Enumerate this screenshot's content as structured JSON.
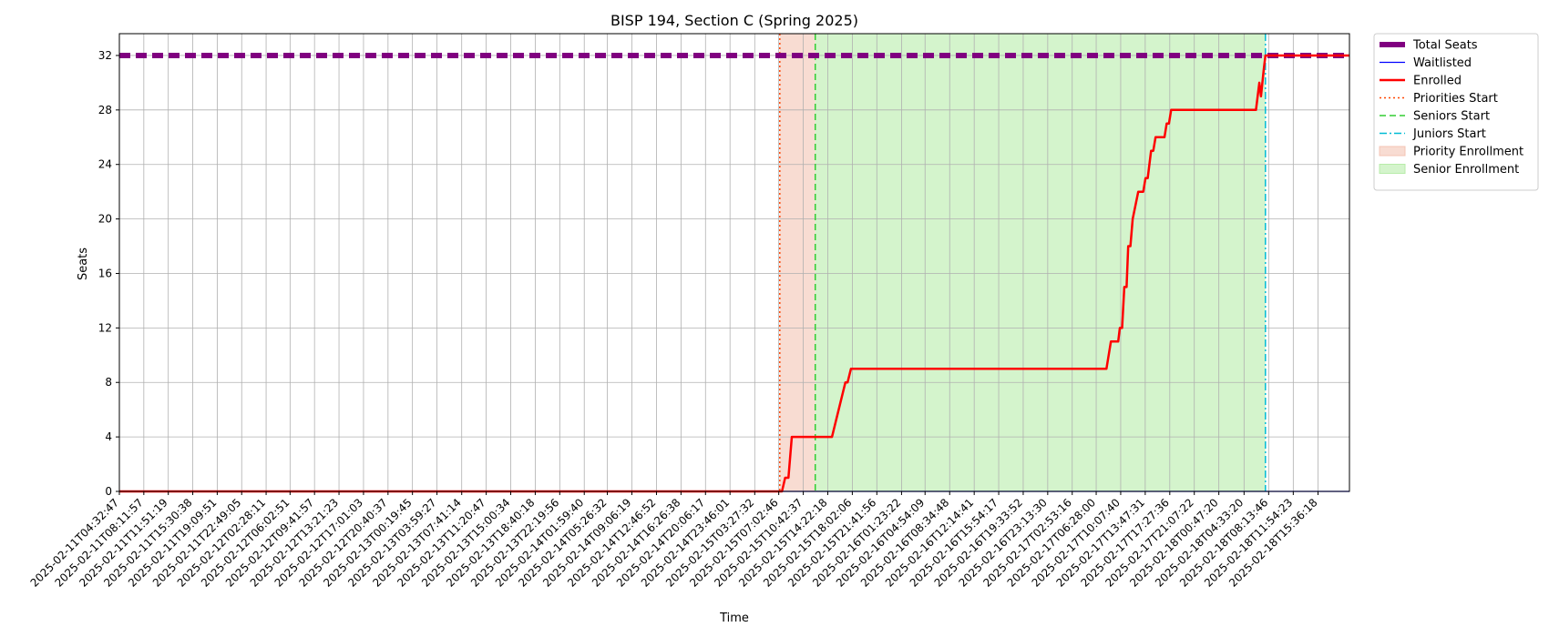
{
  "chart_data": {
    "type": "line",
    "title": "BISP 194, Section C (Spring 2025)",
    "xlabel": "Time",
    "ylabel": "Seats",
    "ylim": [
      0,
      33.6
    ],
    "yticks": [
      0,
      4,
      8,
      12,
      16,
      20,
      24,
      28,
      32
    ],
    "grid": true,
    "legend_position": "outside-top-right",
    "x_range": [
      "2025-02-11T04:32:47",
      "2025-02-18T20:18:00"
    ],
    "x_ticks": [
      "2025-02-11T04:32:47",
      "2025-02-11T08:11:57",
      "2025-02-11T11:51:19",
      "2025-02-11T15:30:38",
      "2025-02-11T19:09:51",
      "2025-02-11T22:49:05",
      "2025-02-12T02:28:11",
      "2025-02-12T06:02:51",
      "2025-02-12T09:41:57",
      "2025-02-12T13:21:23",
      "2025-02-12T17:01:03",
      "2025-02-12T20:40:37",
      "2025-02-13T00:19:45",
      "2025-02-13T03:59:27",
      "2025-02-13T07:41:14",
      "2025-02-13T11:20:47",
      "2025-02-13T15:00:34",
      "2025-02-13T18:40:18",
      "2025-02-13T22:19:56",
      "2025-02-14T01:59:40",
      "2025-02-14T05:26:32",
      "2025-02-14T09:06:19",
      "2025-02-14T12:46:52",
      "2025-02-14T16:26:38",
      "2025-02-14T20:06:17",
      "2025-02-14T23:46:01",
      "2025-02-15T03:27:32",
      "2025-02-15T07:02:46",
      "2025-02-15T10:42:37",
      "2025-02-15T14:22:18",
      "2025-02-15T18:02:06",
      "2025-02-15T21:41:56",
      "2025-02-16T01:23:22",
      "2025-02-16T04:54:09",
      "2025-02-16T08:34:48",
      "2025-02-16T12:14:41",
      "2025-02-16T15:54:17",
      "2025-02-16T19:33:52",
      "2025-02-16T23:13:30",
      "2025-02-17T02:53:16",
      "2025-02-17T06:28:00",
      "2025-02-17T10:07:40",
      "2025-02-17T13:47:31",
      "2025-02-17T17:27:36",
      "2025-02-17T21:07:22",
      "2025-02-18T00:47:20",
      "2025-02-18T04:33:20",
      "2025-02-18T08:13:46",
      "2025-02-18T11:54:23",
      "2025-02-18T15:36:18"
    ],
    "series": [
      {
        "name": "Total Seats",
        "color": "#800080",
        "style": "dashed-thick",
        "points": [
          [
            "2025-02-11T04:32:47",
            32
          ],
          [
            "2025-02-18T20:18:00",
            32
          ]
        ]
      },
      {
        "name": "Waitlisted",
        "color": "#0000ff",
        "style": "solid-thin",
        "points": [
          [
            "2025-02-11T04:32:47",
            0
          ],
          [
            "2025-02-18T20:18:00",
            0
          ]
        ]
      },
      {
        "name": "Enrolled",
        "color": "#ff0000",
        "style": "solid",
        "points": [
          [
            "2025-02-11T04:32:47",
            0
          ],
          [
            "2025-02-15T07:32:00",
            0
          ],
          [
            "2025-02-15T08:00:00",
            1
          ],
          [
            "2025-02-15T08:30:00",
            1
          ],
          [
            "2025-02-15T09:00:00",
            4
          ],
          [
            "2025-02-15T12:00:00",
            4
          ],
          [
            "2025-02-15T15:00:00",
            4
          ],
          [
            "2025-02-15T17:00:00",
            8
          ],
          [
            "2025-02-15T17:20:00",
            8
          ],
          [
            "2025-02-15T17:50:00",
            9
          ],
          [
            "2025-02-17T08:00:00",
            9
          ],
          [
            "2025-02-17T08:40:00",
            11
          ],
          [
            "2025-02-17T09:45:00",
            11
          ],
          [
            "2025-02-17T10:00:00",
            12
          ],
          [
            "2025-02-17T10:20:00",
            12
          ],
          [
            "2025-02-17T10:40:00",
            15
          ],
          [
            "2025-02-17T11:00:00",
            15
          ],
          [
            "2025-02-17T11:15:00",
            18
          ],
          [
            "2025-02-17T11:35:00",
            18
          ],
          [
            "2025-02-17T11:55:00",
            20
          ],
          [
            "2025-02-17T12:45:00",
            22
          ],
          [
            "2025-02-17T13:30:00",
            22
          ],
          [
            "2025-02-17T13:50:00",
            23
          ],
          [
            "2025-02-17T14:10:00",
            23
          ],
          [
            "2025-02-17T14:40:00",
            25
          ],
          [
            "2025-02-17T15:00:00",
            25
          ],
          [
            "2025-02-17T15:20:00",
            26
          ],
          [
            "2025-02-17T16:40:00",
            26
          ],
          [
            "2025-02-17T17:00:00",
            27
          ],
          [
            "2025-02-17T17:20:00",
            27
          ],
          [
            "2025-02-17T17:40:00",
            28
          ],
          [
            "2025-02-18T06:20:00",
            28
          ],
          [
            "2025-02-18T06:50:00",
            30
          ],
          [
            "2025-02-18T07:05:00",
            29
          ],
          [
            "2025-02-18T07:30:00",
            31
          ],
          [
            "2025-02-18T07:45:00",
            32
          ],
          [
            "2025-02-18T20:18:00",
            32
          ]
        ]
      }
    ],
    "events": [
      {
        "name": "Priorities Start",
        "time": "2025-02-15T07:12:00",
        "color": "#ff4500",
        "style": "dotted"
      },
      {
        "name": "Seniors Start",
        "time": "2025-02-15T12:30:00",
        "color": "#32cd32",
        "style": "dashed"
      },
      {
        "name": "Juniors Start",
        "time": "2025-02-18T07:45:00",
        "color": "#00bcd4",
        "style": "dashdot"
      }
    ],
    "regions": [
      {
        "name": "Priority Enrollment",
        "start": "2025-02-15T07:12:00",
        "end": "2025-02-15T12:30:00",
        "color": "#f4c4b4"
      },
      {
        "name": "Senior Enrollment",
        "start": "2025-02-15T12:30:00",
        "end": "2025-02-18T07:45:00",
        "color": "#b8ecaa"
      }
    ]
  }
}
